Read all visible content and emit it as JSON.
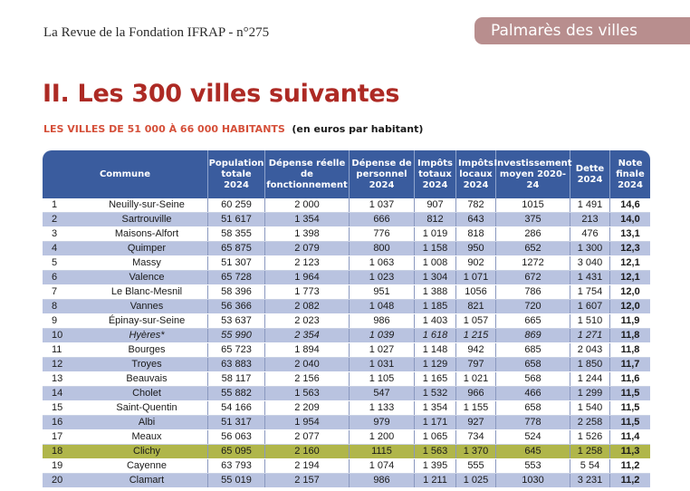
{
  "header": {
    "revue": "La Revue de la Fondation IFRAP - n°275",
    "section_tag": "Palmarès des villes"
  },
  "title": "II. Les 300 villes suivantes",
  "subtitle": {
    "category": "LES VILLES DE 51 000 À 66 000 HABITANTS",
    "unit": "(en euros par habitant)"
  },
  "table": {
    "columns": [
      "Commune",
      "Population totale 2024",
      "Dépense réelle de fonctionnement",
      "Dépense de personnel 2024",
      "Impôts totaux 2024",
      "Impôts locaux 2024",
      "Investissement moyen 2020-24",
      "Dette 2024",
      "Note finale 2024"
    ],
    "rows": [
      {
        "rank": "1",
        "city": "Neuilly-sur-Seine",
        "pop": "60 259",
        "dep": "2 000",
        "pers": "1 037",
        "impt": "907",
        "impl": "782",
        "inv": "1015",
        "dette": "1 491",
        "note": "14,6"
      },
      {
        "rank": "2",
        "city": "Sartrouville",
        "pop": "51 617",
        "dep": "1 354",
        "pers": "666",
        "impt": "812",
        "impl": "643",
        "inv": "375",
        "dette": "213",
        "note": "14,0"
      },
      {
        "rank": "3",
        "city": "Maisons-Alfort",
        "pop": "58 355",
        "dep": "1 398",
        "pers": "776",
        "impt": "1 019",
        "impl": "818",
        "inv": "286",
        "dette": "476",
        "note": "13,1"
      },
      {
        "rank": "4",
        "city": "Quimper",
        "pop": "65 875",
        "dep": "2 079",
        "pers": "800",
        "impt": "1 158",
        "impl": "950",
        "inv": "652",
        "dette": "1 300",
        "note": "12,3"
      },
      {
        "rank": "5",
        "city": "Massy",
        "pop": "51 307",
        "dep": "2 123",
        "pers": "1 063",
        "impt": "1 008",
        "impl": "902",
        "inv": "1272",
        "dette": "3 040",
        "note": "12,1"
      },
      {
        "rank": "6",
        "city": "Valence",
        "pop": "65 728",
        "dep": "1 964",
        "pers": "1 023",
        "impt": "1 304",
        "impl": "1 071",
        "inv": "672",
        "dette": "1 431",
        "note": "12,1"
      },
      {
        "rank": "7",
        "city": "Le Blanc-Mesnil",
        "pop": "58 396",
        "dep": "1 773",
        "pers": "951",
        "impt": "1 388",
        "impl": "1056",
        "inv": "786",
        "dette": "1 754",
        "note": "12,0"
      },
      {
        "rank": "8",
        "city": "Vannes",
        "pop": "56 366",
        "dep": "2 082",
        "pers": "1 048",
        "impt": "1 185",
        "impl": "821",
        "inv": "720",
        "dette": "1 607",
        "note": "12,0"
      },
      {
        "rank": "9",
        "city": "Épinay-sur-Seine",
        "pop": "53 637",
        "dep": "2 023",
        "pers": "986",
        "impt": "1 403",
        "impl": "1 057",
        "inv": "665",
        "dette": "1 510",
        "note": "11,9"
      },
      {
        "rank": "10",
        "city": "Hyères*",
        "pop": "55 990",
        "dep": "2 354",
        "pers": "1 039",
        "impt": "1 618",
        "impl": "1 215",
        "inv": "869",
        "dette": "1 271",
        "note": "11,8",
        "italic": true
      },
      {
        "rank": "11",
        "city": "Bourges",
        "pop": "65 723",
        "dep": "1 894",
        "pers": "1 027",
        "impt": "1 148",
        "impl": "942",
        "inv": "685",
        "dette": "2 043",
        "note": "11,8"
      },
      {
        "rank": "12",
        "city": "Troyes",
        "pop": "63 883",
        "dep": "2 040",
        "pers": "1 031",
        "impt": "1 129",
        "impl": "797",
        "inv": "658",
        "dette": "1 850",
        "note": "11,7"
      },
      {
        "rank": "13",
        "city": "Beauvais",
        "pop": "58 117",
        "dep": "2 156",
        "pers": "1 105",
        "impt": "1 165",
        "impl": "1 021",
        "inv": "568",
        "dette": "1 244",
        "note": "11,6"
      },
      {
        "rank": "14",
        "city": "Cholet",
        "pop": "55 882",
        "dep": "1 563",
        "pers": "547",
        "impt": "1 532",
        "impl": "966",
        "inv": "466",
        "dette": "1 299",
        "note": "11,5"
      },
      {
        "rank": "15",
        "city": "Saint-Quentin",
        "pop": "54 166",
        "dep": "2 209",
        "pers": "1 133",
        "impt": "1 354",
        "impl": "1 155",
        "inv": "658",
        "dette": "1 540",
        "note": "11,5"
      },
      {
        "rank": "16",
        "city": "Albi",
        "pop": "51 317",
        "dep": "1 954",
        "pers": "979",
        "impt": "1 171",
        "impl": "927",
        "inv": "778",
        "dette": "2 258",
        "note": "11,5"
      },
      {
        "rank": "17",
        "city": "Meaux",
        "pop": "56 063",
        "dep": "2 077",
        "pers": "1 200",
        "impt": "1 065",
        "impl": "734",
        "inv": "524",
        "dette": "1 526",
        "note": "11,4"
      },
      {
        "rank": "18",
        "city": "Clichy",
        "pop": "65 095",
        "dep": "2 160",
        "pers": "1115",
        "impt": "1 563",
        "impl": "1 370",
        "inv": "645",
        "dette": "1 258",
        "note": "11,3",
        "highlight": true
      },
      {
        "rank": "19",
        "city": "Cayenne",
        "pop": "63 793",
        "dep": "2 194",
        "pers": "1 074",
        "impt": "1 395",
        "impl": "555",
        "inv": "553",
        "dette": "5 54",
        "note": "11,2"
      },
      {
        "rank": "20",
        "city": "Clamart",
        "pop": "55 019",
        "dep": "2 157",
        "pers": "986",
        "impt": "1 211",
        "impl": "1 025",
        "inv": "1030",
        "dette": "3 231",
        "note": "11,2"
      }
    ]
  },
  "colors": {
    "title_red": "#ad2a24",
    "subtitle_red": "#d5503a",
    "header_blue": "#3a5c9e",
    "row_alt_blue": "#b9c3e0",
    "highlight_olive": "#b0b64a",
    "tag_pink": "#b88e8e"
  }
}
